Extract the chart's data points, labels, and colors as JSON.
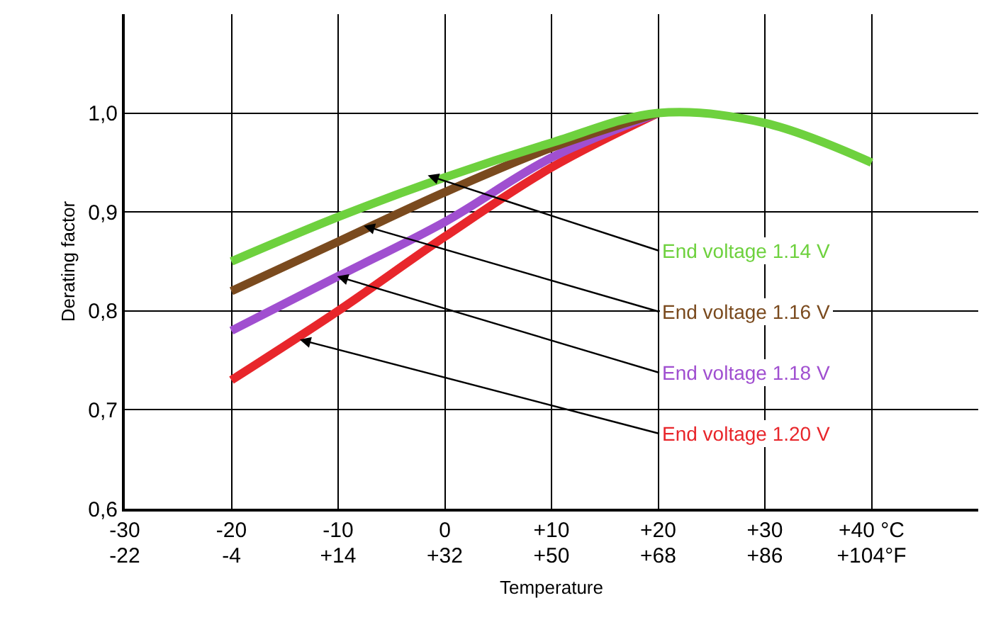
{
  "chart_data": {
    "type": "line",
    "xlabel": "Temperature",
    "ylabel": "Derating factor",
    "xlim": [
      -30,
      50
    ],
    "ylim": [
      0.6,
      1.1
    ],
    "xticks": [
      -30,
      -20,
      -10,
      0,
      {
        "value": 10,
        "label": "+10"
      },
      {
        "value": 20,
        "label": "+20"
      },
      {
        "value": 30,
        "label": "+30"
      },
      {
        "value": 40,
        "label": "+40 °C"
      }
    ],
    "x2lim": [
      -22,
      122
    ],
    "x2ticks": [
      -22,
      -4,
      {
        "value": 14,
        "label": "+14"
      },
      {
        "value": 32,
        "label": "+32"
      },
      {
        "value": 50,
        "label": "+50"
      },
      {
        "value": 68,
        "label": "+68"
      },
      {
        "value": 86,
        "label": "+86"
      },
      {
        "value": 104,
        "label": "+104°F"
      }
    ],
    "yticks": [
      {
        "value": 0.6,
        "label": "0,6"
      },
      {
        "value": 0.7,
        "label": "0,7"
      },
      {
        "value": 0.8,
        "label": "0,8"
      },
      {
        "value": 0.9,
        "label": "0,9"
      },
      {
        "value": 1.0,
        "label": "1,0"
      }
    ],
    "grid": true,
    "marker": "none",
    "line_style": "solid",
    "series": [
      {
        "color": "#e8262b",
        "x": [
          -20,
          -10,
          0,
          10,
          20
        ],
        "values": [
          0.73,
          0.8,
          0.875,
          0.945,
          1.0
        ]
      },
      {
        "color": "#a04fd0",
        "x": [
          -20,
          -10,
          0,
          10,
          20
        ],
        "values": [
          0.78,
          0.835,
          0.89,
          0.955,
          1.0
        ]
      },
      {
        "color": "#7a4a1e",
        "x": [
          -20,
          -10,
          0,
          10,
          20
        ],
        "values": [
          0.82,
          0.87,
          0.92,
          0.965,
          1.0
        ]
      },
      {
        "color": "#6ed13e",
        "x": [
          -20,
          -10,
          0,
          10,
          20,
          30,
          40
        ],
        "values": [
          0.85,
          0.895,
          0.935,
          0.97,
          1.0,
          0.99,
          0.95
        ]
      }
    ],
    "annotations": [
      {
        "text": "End voltage 1.20 V",
        "x": -13.6,
        "y": 0.771
      },
      {
        "text": "End voltage 1.18 V",
        "x": -10.1,
        "y": 0.835
      },
      {
        "text": "End voltage 1.16 V",
        "x": -7.6,
        "y": 0.886
      },
      {
        "text": "End voltage 1.14 V",
        "x": -1.6,
        "y": 0.937
      }
    ]
  }
}
